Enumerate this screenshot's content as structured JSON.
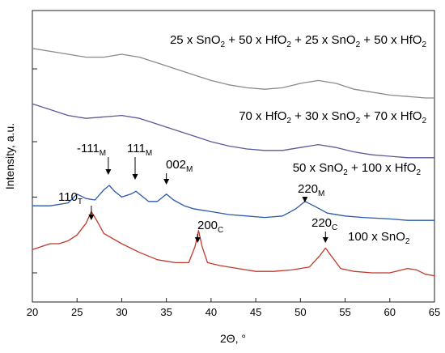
{
  "chart_data": {
    "type": "line",
    "xlabel": "2Θ, °",
    "ylabel": "Intensity, a.u.",
    "xlim": [
      20,
      65
    ],
    "x_ticks": [
      "20",
      "25",
      "30",
      "35",
      "40",
      "45",
      "50",
      "55",
      "60",
      "65"
    ],
    "ylim": [
      0,
      10
    ],
    "y_tick_values": [
      1.0,
      3.6,
      5.5,
      8.0
    ],
    "grid": false,
    "series": [
      {
        "name": "25 x SnO2 + 50 x HfO2 + 25 x SnO2 + 50 x HfO2",
        "name_parts": [
          "25 x SnO",
          "2",
          " + 50 x HfO",
          "2",
          " + 25 x SnO",
          "2",
          " + 50 x HfO",
          "2"
        ],
        "color": "#8a8a8a",
        "x": [
          20,
          22,
          24,
          26,
          28,
          30,
          32,
          34,
          36,
          38,
          40,
          42,
          44,
          46,
          48,
          50,
          52,
          54,
          56,
          58,
          60,
          62,
          64,
          65
        ],
        "y": [
          8.7,
          8.6,
          8.5,
          8.4,
          8.4,
          8.5,
          8.4,
          8.2,
          8.0,
          7.8,
          7.6,
          7.45,
          7.35,
          7.3,
          7.35,
          7.5,
          7.6,
          7.5,
          7.3,
          7.2,
          7.1,
          7.05,
          7.0,
          7.0
        ]
      },
      {
        "name": "70 x HfO2 + 30 x SnO2 + 70 x HfO2",
        "name_parts": [
          "70 x HfO",
          "2",
          " + 30 x SnO",
          "2",
          " + 70 x HfO",
          "2"
        ],
        "color": "#5a5a9a",
        "x": [
          20,
          22,
          24,
          26,
          28,
          30,
          32,
          34,
          36,
          38,
          40,
          42,
          44,
          46,
          48,
          50,
          52,
          54,
          56,
          58,
          60,
          62,
          64,
          65
        ],
        "y": [
          6.8,
          6.6,
          6.4,
          6.3,
          6.35,
          6.4,
          6.3,
          6.1,
          5.9,
          5.7,
          5.5,
          5.35,
          5.25,
          5.2,
          5.2,
          5.3,
          5.4,
          5.3,
          5.15,
          5.05,
          5.0,
          4.95,
          4.95,
          4.95
        ]
      },
      {
        "name": "50 x SnO2 + 100 x HfO2",
        "name_parts": [
          "50 x SnO",
          "2",
          " + 100 x HfO",
          "2"
        ],
        "color": "#2a5aa8",
        "x": [
          20,
          22,
          24,
          25,
          26,
          27,
          28,
          28.6,
          29.2,
          30,
          31,
          31.6,
          32.2,
          33,
          34,
          35,
          35.8,
          37,
          38,
          40,
          42,
          44,
          46,
          48,
          49.5,
          50.5,
          51.5,
          53,
          55,
          57,
          60,
          62,
          65
        ],
        "y": [
          3.3,
          3.3,
          3.4,
          3.7,
          3.55,
          3.5,
          3.85,
          4.0,
          3.8,
          3.6,
          3.7,
          3.8,
          3.65,
          3.45,
          3.45,
          3.7,
          3.5,
          3.3,
          3.2,
          3.1,
          3.0,
          2.95,
          2.9,
          2.95,
          3.2,
          3.45,
          3.3,
          3.05,
          2.95,
          2.9,
          2.85,
          2.8,
          2.8
        ]
      },
      {
        "name": "100 x SnO2",
        "name_parts": [
          "100 x SnO",
          "2"
        ],
        "color": "#c0392b",
        "x": [
          20,
          21,
          22,
          23,
          24,
          25,
          26,
          26.6,
          27.2,
          28,
          30,
          32,
          34,
          36,
          37.5,
          38.2,
          38.6,
          39,
          39.6,
          41,
          43,
          45,
          47,
          49,
          51,
          52.2,
          52.8,
          53.4,
          54.5,
          56,
          58,
          60,
          62,
          63,
          64,
          65
        ],
        "y": [
          1.8,
          1.9,
          2.0,
          2.0,
          2.1,
          2.3,
          2.7,
          3.1,
          2.8,
          2.35,
          2.0,
          1.7,
          1.45,
          1.35,
          1.35,
          1.9,
          2.45,
          1.9,
          1.35,
          1.25,
          1.15,
          1.05,
          1.05,
          1.1,
          1.2,
          1.6,
          1.85,
          1.6,
          1.15,
          1.05,
          1.0,
          1.0,
          1.15,
          1.1,
          0.95,
          0.9
        ]
      }
    ],
    "annotations": [
      {
        "label": "110",
        "sub": "T",
        "x": 26.6
      },
      {
        "label": "-111",
        "sub": "M",
        "x": 28.5
      },
      {
        "label": "111",
        "sub": "M",
        "x": 31.5
      },
      {
        "label": "002",
        "sub": "M",
        "x": 35.0
      },
      {
        "label": "200",
        "sub": "C",
        "x": 38.5
      },
      {
        "label": "220",
        "sub": "M",
        "x": 50.5
      },
      {
        "label": "220",
        "sub": "C",
        "x": 52.8
      }
    ]
  }
}
